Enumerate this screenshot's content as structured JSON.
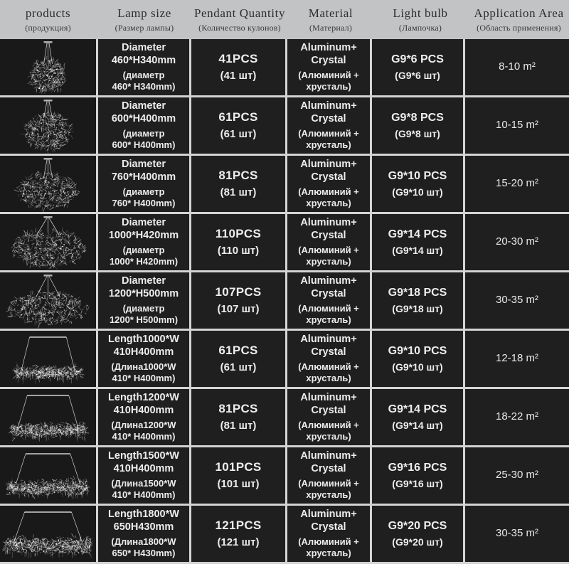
{
  "colors": {
    "header_bg": "#c2c3c4",
    "header_text": "#2d2d2f",
    "grid_line": "#d4d4d4",
    "cell_bg": "#1f1f20",
    "image_cell_bg": "#191919",
    "cell_text": "#ededed"
  },
  "header": {
    "columns": [
      {
        "id": "products",
        "en": "products",
        "ru": "(продукция)"
      },
      {
        "id": "lamp-size",
        "en": "Lamp size",
        "ru": "(Размер лампы)"
      },
      {
        "id": "pendant-quantity",
        "en": "Pendant Quantity",
        "ru": "(Количество кулонов)"
      },
      {
        "id": "material",
        "en": "Material",
        "ru": "(Материал)"
      },
      {
        "id": "light-bulb",
        "en": "Light bulb",
        "ru": "(Лампочка)"
      },
      {
        "id": "application-area",
        "en": "Application Area",
        "ru": "(Область применения)"
      }
    ]
  },
  "rows": [
    {
      "image_type": "round-crystal-chandelier",
      "size": [
        "Diameter",
        "460*H340mm",
        "(диаметр",
        "460* H340mm)"
      ],
      "quantity": [
        "41PCS",
        "(41 шт)"
      ],
      "material": [
        "Aluminum+",
        "Crystal",
        "(Алюминий +",
        "хрусталь)"
      ],
      "bulb": [
        "G9*6 PCS",
        "(G9*6 шт)"
      ],
      "area": "8-10 m²"
    },
    {
      "image_type": "round-crystal-chandelier",
      "size": [
        "Diameter",
        "600*H400mm",
        "(диаметр",
        "600* H400mm)"
      ],
      "quantity": [
        "61PCS",
        "(61 шт)"
      ],
      "material": [
        "Aluminum+",
        "Crystal",
        "(Алюминий +",
        "хрусталь)"
      ],
      "bulb": [
        "G9*8 PCS",
        "(G9*8 шт)"
      ],
      "area": "10-15 m²"
    },
    {
      "image_type": "round-crystal-chandelier",
      "size": [
        "Diameter",
        "760*H400mm",
        "(диаметр",
        "760* H400mm)"
      ],
      "quantity": [
        "81PCS",
        "(81 шт)"
      ],
      "material": [
        "Aluminum+",
        "Crystal",
        "(Алюминий +",
        "хрусталь)"
      ],
      "bulb": [
        "G9*10 PCS",
        "(G9*10 шт)"
      ],
      "area": "15-20 m²"
    },
    {
      "image_type": "round-crystal-chandelier",
      "size": [
        "Diameter",
        "1000*H420mm",
        "(диаметр",
        "1000* H420mm)"
      ],
      "quantity": [
        "110PCS",
        "(110 шт)"
      ],
      "material": [
        "Aluminum+",
        "Crystal",
        "(Алюминий +",
        "хрусталь)"
      ],
      "bulb": [
        "G9*14 PCS",
        "(G9*14 шт)"
      ],
      "area": "20-30 m²"
    },
    {
      "image_type": "round-crystal-chandelier",
      "size": [
        "Diameter",
        "1200*H500mm",
        "(диаметр",
        "1200* H500mm)"
      ],
      "quantity": [
        "107PCS",
        "(107 шт)"
      ],
      "material": [
        "Aluminum+",
        "Crystal",
        "(Алюминий +",
        "хрусталь)"
      ],
      "bulb": [
        "G9*18 PCS",
        "(G9*18 шт)"
      ],
      "area": "30-35 m²"
    },
    {
      "image_type": "linear-crystal-chandelier",
      "size": [
        "Length1000*W",
        "410H400mm",
        "(Длина1000*W",
        "410* H400mm)"
      ],
      "quantity": [
        "61PCS",
        "(61 шт)"
      ],
      "material": [
        "Aluminum+",
        "Crystal",
        "(Алюминий +",
        "хрусталь)"
      ],
      "bulb": [
        "G9*10 PCS",
        "(G9*10 шт)"
      ],
      "area": "12-18 m²"
    },
    {
      "image_type": "linear-crystal-chandelier",
      "size": [
        "Length1200*W",
        "410H400mm",
        "(Длина1200*W",
        "410* H400mm)"
      ],
      "quantity": [
        "81PCS",
        "(81 шт)"
      ],
      "material": [
        "Aluminum+",
        "Crystal",
        "(Алюминий +",
        "хрусталь)"
      ],
      "bulb": [
        "G9*14 PCS",
        "(G9*14 шт)"
      ],
      "area": "18-22 m²"
    },
    {
      "image_type": "linear-crystal-chandelier",
      "size": [
        "Length1500*W",
        "410H400mm",
        "(Длина1500*W",
        "410* H400mm)"
      ],
      "quantity": [
        "101PCS",
        "(101 шт)"
      ],
      "material": [
        "Aluminum+",
        "Crystal",
        "(Алюминий +",
        "хрусталь)"
      ],
      "bulb": [
        "G9*16 PCS",
        "(G9*16 шт)"
      ],
      "area": "25-30 m²"
    },
    {
      "image_type": "linear-crystal-chandelier",
      "size": [
        "Length1800*W",
        "650H430mm",
        "(Длина1800*W",
        "650* H430mm)"
      ],
      "quantity": [
        "121PCS",
        "(121 шт)"
      ],
      "material": [
        "Aluminum+",
        "Crystal",
        "(Алюминий +",
        "хрусталь)"
      ],
      "bulb": [
        "G9*20 PCS",
        "(G9*20 шт)"
      ],
      "area": "30-35 m²"
    }
  ]
}
